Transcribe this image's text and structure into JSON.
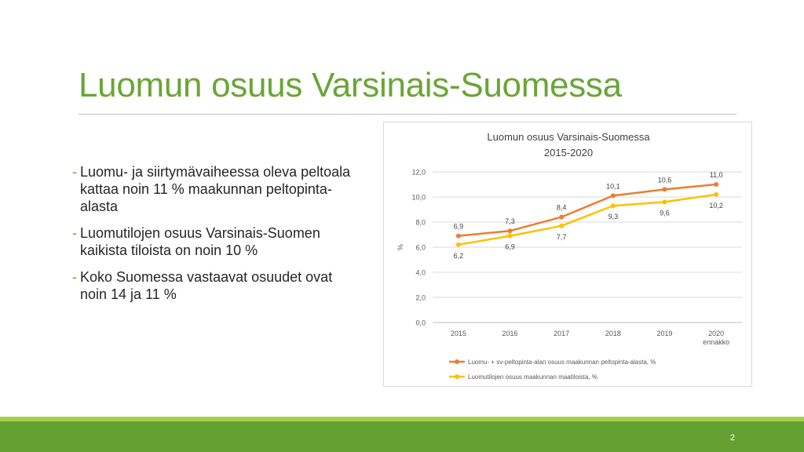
{
  "slide": {
    "title": "Luomun osuus Varsinais-Suomessa",
    "page_number": "2",
    "bullets": [
      "Luomu- ja siirtymävaiheessa oleva peltoala kattaa noin 11 % maakunnan peltopinta-alasta",
      "Luomutilojen osuus Varsinais-Suomen kaikista tiloista on noin 10 %",
      "Koko Suomessa vastaavat osuudet ovat noin 14 ja 11 %"
    ],
    "bullet_marker": "-"
  },
  "colors": {
    "title_green": "#6aa536",
    "band_dark": "#64a032",
    "band_light": "#a5cf4a",
    "series1": "#ed7d31",
    "series2": "#ffc000"
  },
  "chart_data": {
    "type": "line",
    "title": "Luomun osuus Varsinais-Suomessa",
    "subtitle": "2015-2020",
    "categories": [
      "2015",
      "2016",
      "2017",
      "2018",
      "2019",
      "2020"
    ],
    "category_sublabels": [
      "",
      "",
      "",
      "",
      "",
      "ennakko"
    ],
    "ylabel": "%",
    "xlabel": "",
    "ylim": [
      0,
      12
    ],
    "yticks": [
      "0,0",
      "2,0",
      "4,0",
      "6,0",
      "8,0",
      "10,0",
      "12,0"
    ],
    "grid": true,
    "legend_position": "bottom",
    "series": [
      {
        "name": "Luomu- + sv-peltopinta-alan osuus maakunnan peltopinta-alasta, %",
        "values": [
          6.9,
          7.3,
          8.4,
          10.1,
          10.6,
          11.0
        ],
        "labels": [
          "6,9",
          "7,3",
          "8,4",
          "10,1",
          "10,6",
          "11,0"
        ],
        "label_position": "above",
        "color": "#ed7d31"
      },
      {
        "name": "Luomutilojen osuus maakunnan maatiloista, %",
        "values": [
          6.2,
          6.9,
          7.7,
          9.3,
          9.6,
          10.2
        ],
        "labels": [
          "6,2",
          "6,9",
          "7,7",
          "9,3",
          "9,6",
          "10,2"
        ],
        "label_position": "below",
        "color": "#ffc000"
      }
    ]
  }
}
